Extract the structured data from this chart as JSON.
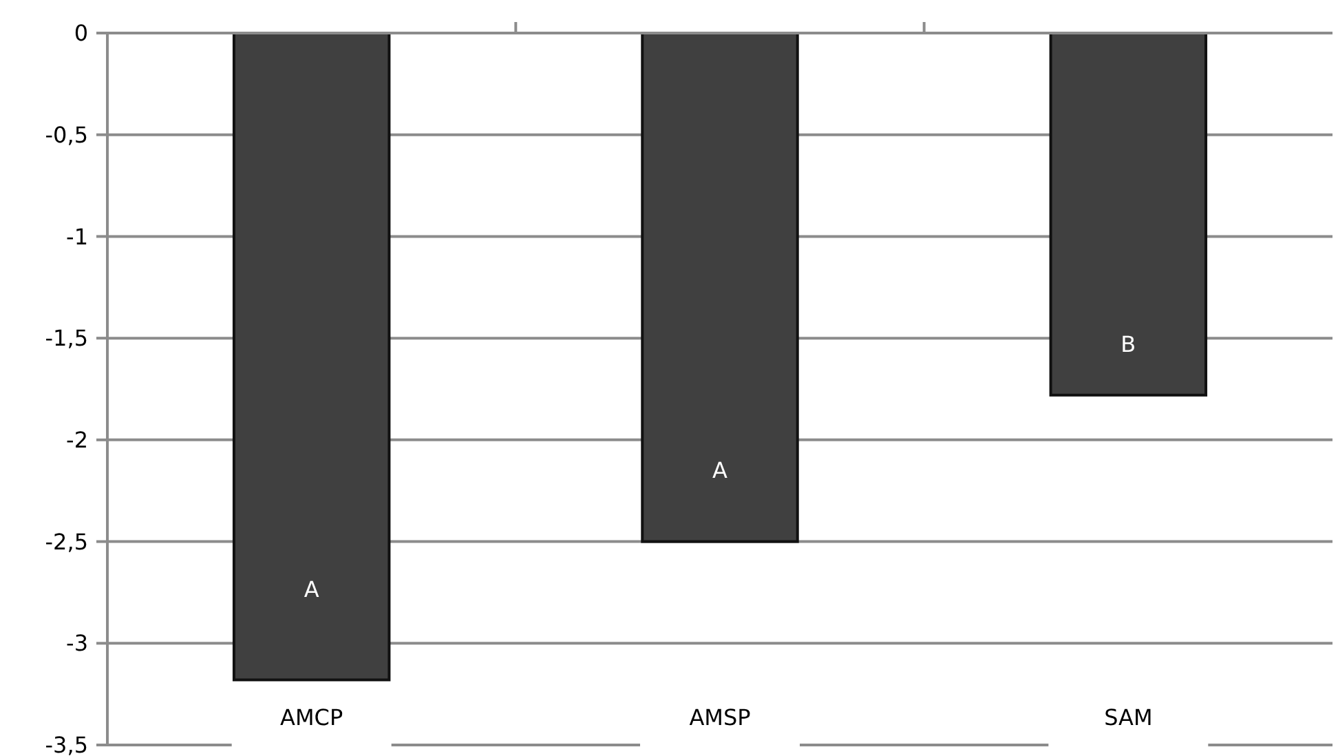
{
  "chart_data": {
    "type": "bar",
    "categories": [
      "AMCP",
      "AMSP",
      "SAM"
    ],
    "values": [
      -3.18,
      -2.5,
      -1.78
    ],
    "color": "#404040",
    "ylim": [
      -3.5,
      0
    ],
    "yticks": [
      0,
      {
        "value": -0.5,
        "label": "-0,5"
      },
      -1,
      {
        "value": -1.5,
        "label": "-1,5"
      },
      -2,
      {
        "value": -2.5,
        "label": "-2,5"
      },
      -3,
      {
        "value": -3.5,
        "label": "-3,5"
      }
    ],
    "grid": "y",
    "annotations": [
      "A",
      "A",
      "B"
    ]
  }
}
